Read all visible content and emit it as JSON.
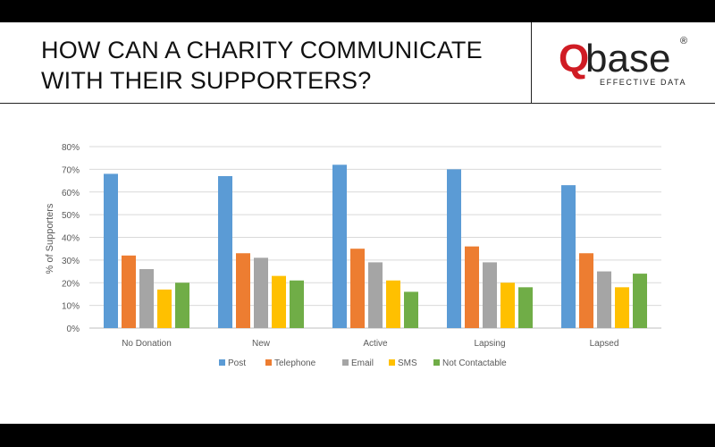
{
  "slide": {
    "title": "HOW CAN A CHARITY COMMUNICATE\nWITH THEIR SUPPORTERS?",
    "logo": {
      "q": "Q",
      "base": "base",
      "registered": "®",
      "tagline": "EFFECTIVE DATA",
      "q_color": "#d01c24"
    }
  },
  "chart_data": {
    "type": "bar",
    "title": "",
    "xlabel": "",
    "ylabel": "% of Supporters",
    "ylim": [
      0,
      80
    ],
    "yticks": [
      "0%",
      "10%",
      "20%",
      "30%",
      "40%",
      "50%",
      "60%",
      "70%",
      "80%"
    ],
    "grid": true,
    "legend_position": "bottom",
    "categories": [
      "No Donation",
      "New",
      "Active",
      "Lapsing",
      "Lapsed"
    ],
    "series": [
      {
        "name": "Post",
        "color": "#5b9bd5",
        "values": [
          68,
          67,
          72,
          70,
          63
        ]
      },
      {
        "name": "Telephone",
        "color": "#ed7d31",
        "values": [
          32,
          33,
          35,
          36,
          33
        ]
      },
      {
        "name": "Email",
        "color": "#a5a5a5",
        "values": [
          26,
          31,
          29,
          29,
          25
        ]
      },
      {
        "name": "SMS",
        "color": "#ffc000",
        "values": [
          17,
          23,
          21,
          20,
          18
        ]
      },
      {
        "name": "Not Contactable",
        "color": "#70ad47",
        "values": [
          20,
          21,
          16,
          18,
          24
        ]
      }
    ]
  }
}
